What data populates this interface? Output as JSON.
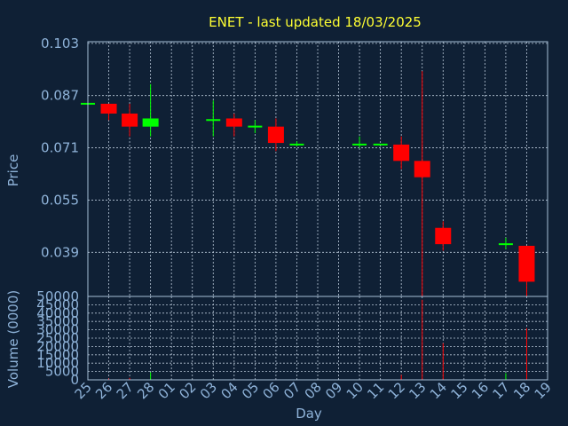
{
  "chart_data": {
    "type": "candlestick",
    "title": "ENET - last updated 18/03/2025",
    "xlabel": "Day",
    "price_ylabel": "Price",
    "volume_ylabel": "Volume (0000)",
    "x_ticks": [
      "25",
      "26",
      "27",
      "28",
      "01",
      "02",
      "03",
      "04",
      "05",
      "06",
      "07",
      "08",
      "09",
      "10",
      "11",
      "12",
      "13",
      "14",
      "15",
      "16",
      "17",
      "18",
      "19"
    ],
    "price_yticks": [
      "0.103",
      "0.087",
      "0.071",
      "0.055",
      "0.039"
    ],
    "price_ylim": [
      0.0255,
      0.1035
    ],
    "volume_yticks": [
      "50000",
      "45000",
      "40000",
      "35000",
      "30000",
      "25000",
      "20000",
      "15000",
      "10000",
      "5000",
      "0"
    ],
    "volume_ylim": [
      0,
      50000
    ],
    "colors": {
      "up": "#00ff00",
      "down": "#ff0000",
      "background": "#0f2035",
      "title": "#ffff33",
      "axis_text": "#8fb3d9"
    },
    "grid": true,
    "candles": [
      {
        "day": "25",
        "open": 0.0845,
        "high": 0.0845,
        "low": 0.0845,
        "close": 0.0845
      },
      {
        "day": "26",
        "open": 0.0845,
        "high": 0.0845,
        "low": 0.0795,
        "close": 0.0815
      },
      {
        "day": "27",
        "open": 0.0815,
        "high": 0.0845,
        "low": 0.0745,
        "close": 0.0775
      },
      {
        "day": "28",
        "open": 0.0775,
        "high": 0.0905,
        "low": 0.0745,
        "close": 0.08
      },
      {
        "day": "03",
        "open": 0.0795,
        "high": 0.0855,
        "low": 0.0745,
        "close": 0.0795
      },
      {
        "day": "04",
        "open": 0.08,
        "high": 0.0815,
        "low": 0.0745,
        "close": 0.0775
      },
      {
        "day": "05",
        "open": 0.0775,
        "high": 0.0795,
        "low": 0.0755,
        "close": 0.0775
      },
      {
        "day": "06",
        "open": 0.0775,
        "high": 0.08,
        "low": 0.07,
        "close": 0.0725
      },
      {
        "day": "07",
        "open": 0.072,
        "high": 0.073,
        "low": 0.0715,
        "close": 0.072
      },
      {
        "day": "10",
        "open": 0.072,
        "high": 0.0745,
        "low": 0.071,
        "close": 0.072
      },
      {
        "day": "11",
        "open": 0.072,
        "high": 0.072,
        "low": 0.072,
        "close": 0.072
      },
      {
        "day": "12",
        "open": 0.072,
        "high": 0.0745,
        "low": 0.0645,
        "close": 0.067
      },
      {
        "day": "13",
        "open": 0.067,
        "high": 0.0945,
        "low": 0.0255,
        "close": 0.062
      },
      {
        "day": "14",
        "open": 0.0465,
        "high": 0.0485,
        "low": 0.0395,
        "close": 0.0415
      },
      {
        "day": "17",
        "open": 0.0415,
        "high": 0.0435,
        "low": 0.04,
        "close": 0.0415
      },
      {
        "day": "18",
        "open": 0.041,
        "high": 0.041,
        "low": 0.0255,
        "close": 0.03
      }
    ],
    "volumes": [
      {
        "day": "25",
        "value": 0
      },
      {
        "day": "26",
        "value": 800
      },
      {
        "day": "27",
        "value": 1200
      },
      {
        "day": "28",
        "value": 4500
      },
      {
        "day": "03",
        "value": 300
      },
      {
        "day": "04",
        "value": 200
      },
      {
        "day": "05",
        "value": 200
      },
      {
        "day": "06",
        "value": 300
      },
      {
        "day": "07",
        "value": 100
      },
      {
        "day": "10",
        "value": 100
      },
      {
        "day": "11",
        "value": 100
      },
      {
        "day": "12",
        "value": 3000
      },
      {
        "day": "13",
        "value": 48000
      },
      {
        "day": "14",
        "value": 22000
      },
      {
        "day": "17",
        "value": 4000
      },
      {
        "day": "18",
        "value": 31000
      }
    ]
  }
}
